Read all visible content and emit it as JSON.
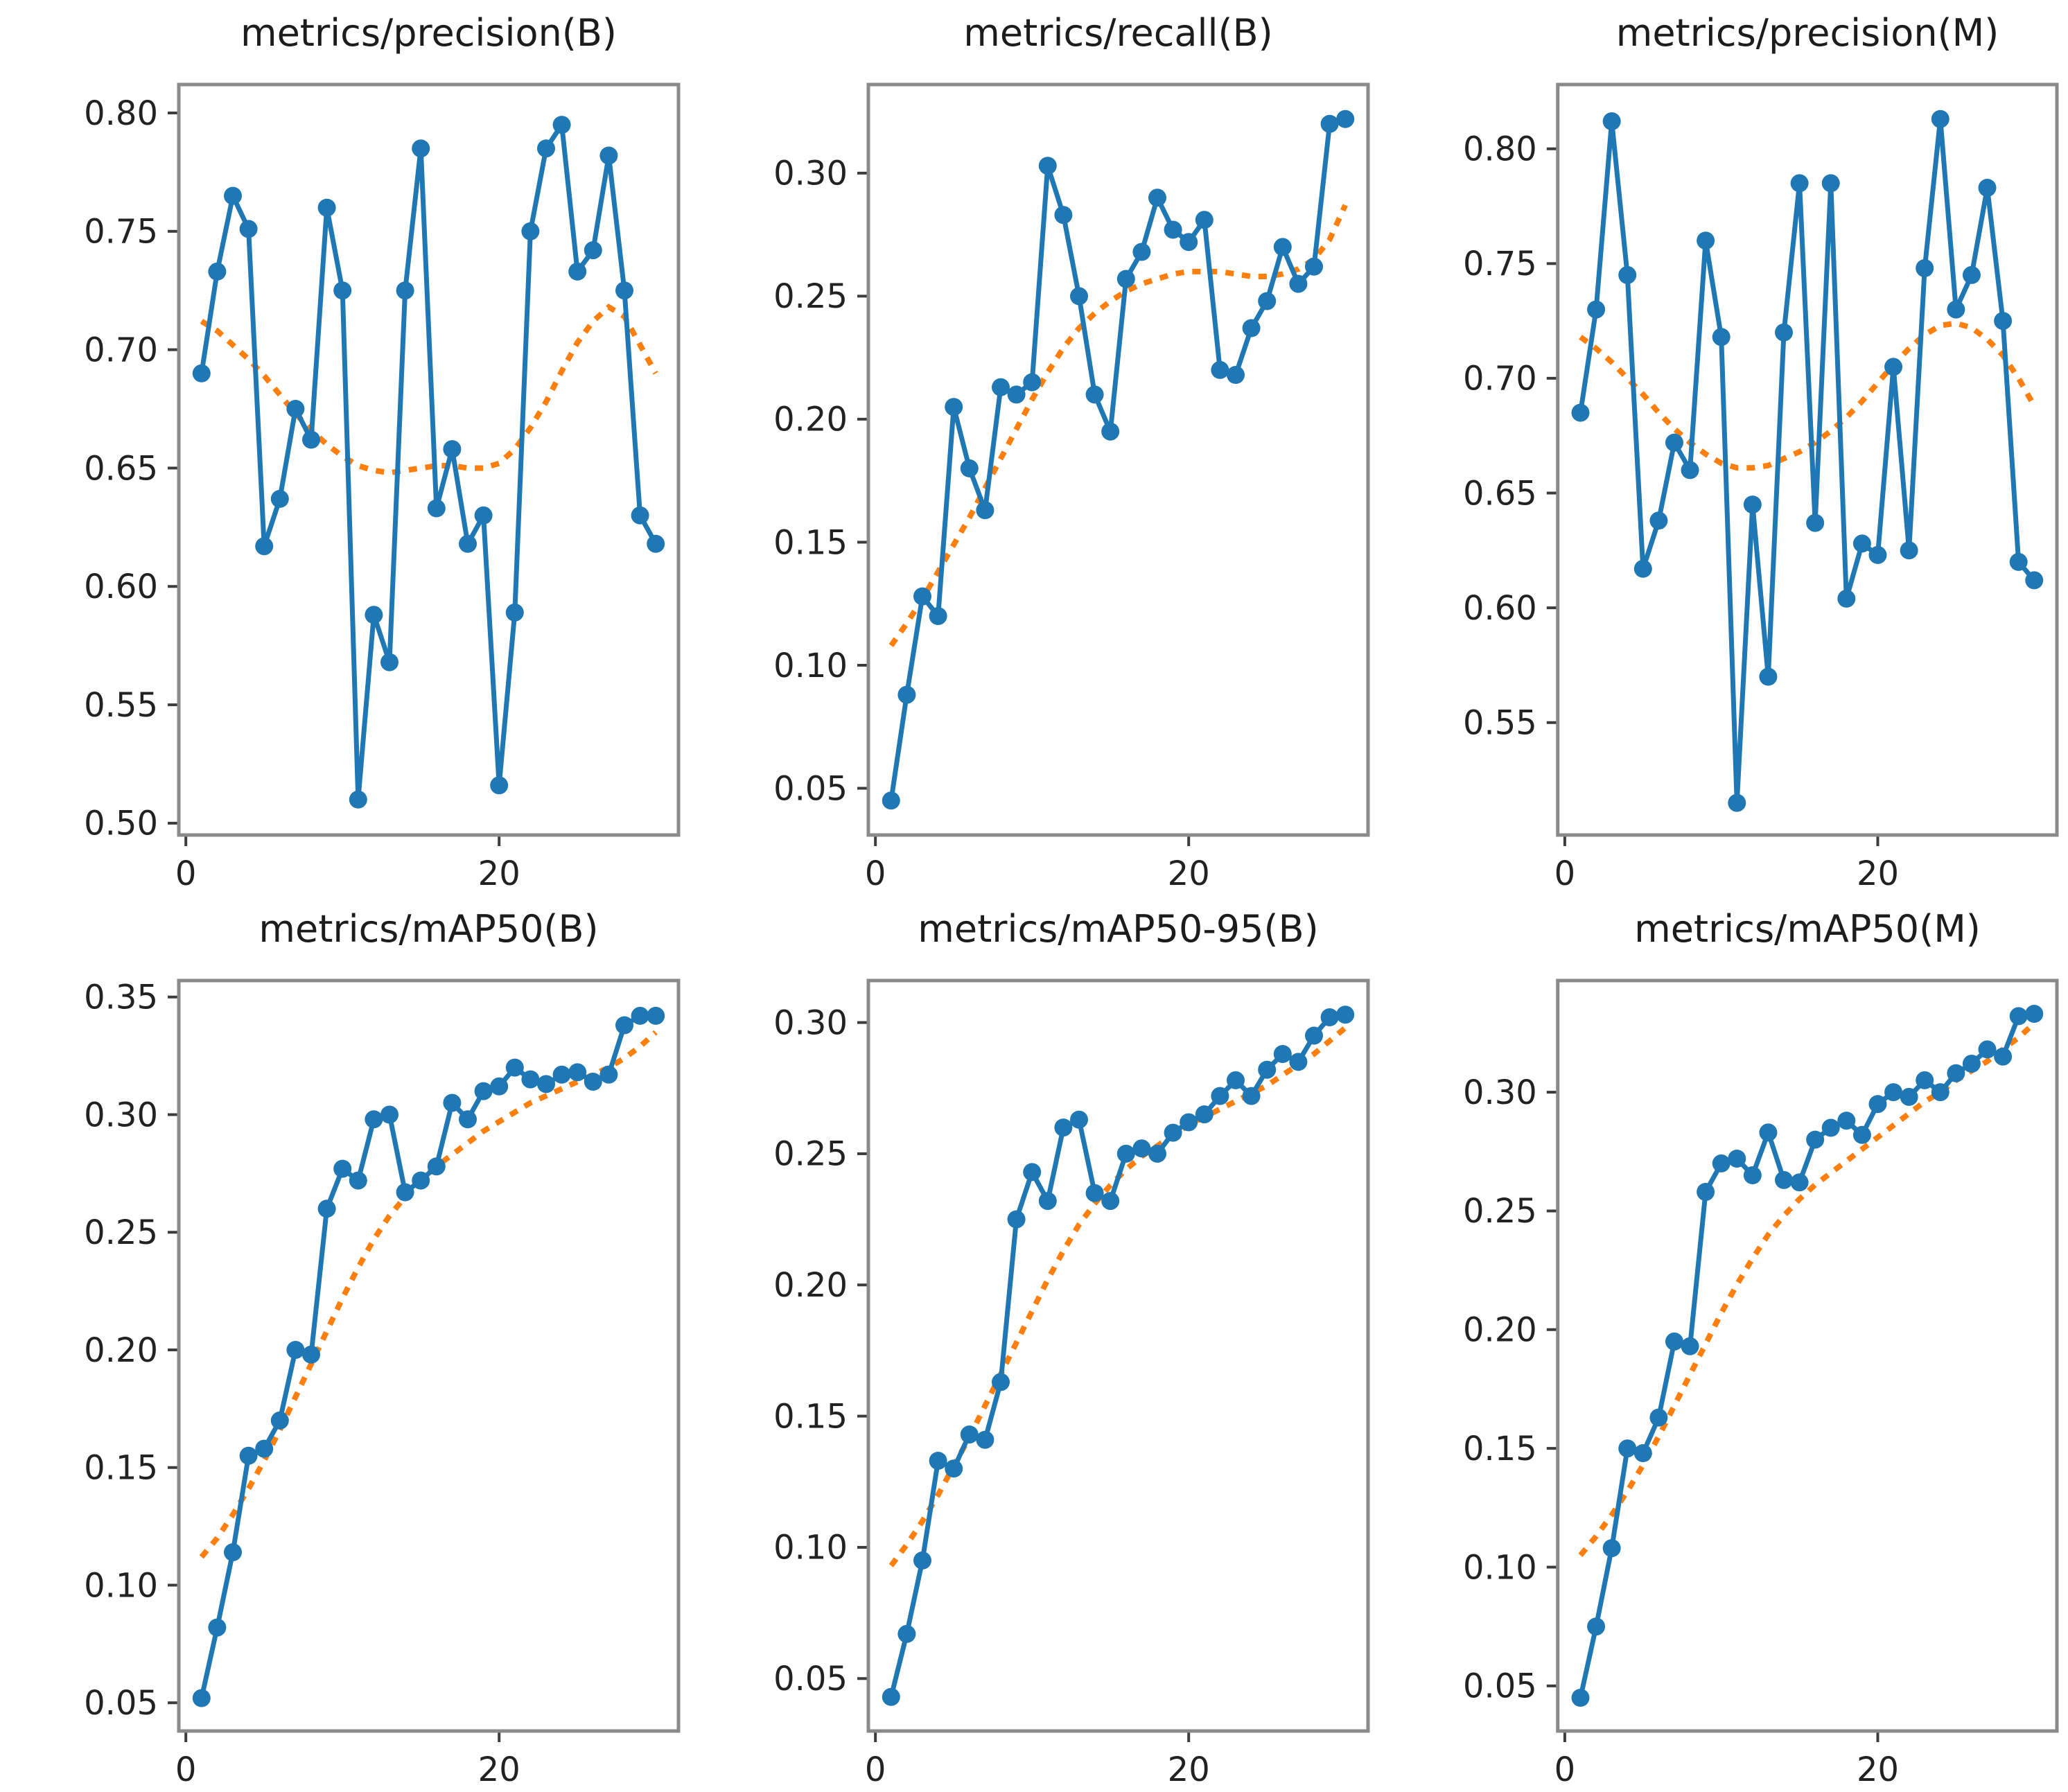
{
  "figure": {
    "kind": "training-metrics-grid",
    "rows": 2,
    "cols": 3,
    "background": "#ffffff",
    "colors": {
      "series": "#1f77b4",
      "trend": "#ff7f0e",
      "spine": "#8a8a8a",
      "tick_mark": "#3c3c3c",
      "tick_label": "#222222",
      "title": "#1c1c1c"
    }
  },
  "chart_data": [
    {
      "type": "line",
      "title": "metrics/precision(B)",
      "xlabel": "",
      "ylabel": "",
      "grid": false,
      "legend_position": "none",
      "xlim": [
        -0.45,
        31.45
      ],
      "ylim": [
        0.495,
        0.812
      ],
      "x_ticks": {
        "values": [
          0,
          20
        ],
        "labels": [
          "0",
          "20"
        ]
      },
      "y_ticks": {
        "values": [
          0.5,
          0.55,
          0.6,
          0.65,
          0.7,
          0.75,
          0.8
        ],
        "labels": [
          "0.50",
          "0.55",
          "0.60",
          "0.65",
          "0.70",
          "0.75",
          "0.80"
        ]
      },
      "x": [
        1,
        2,
        3,
        4,
        5,
        6,
        7,
        8,
        9,
        10,
        11,
        12,
        13,
        14,
        15,
        16,
        17,
        18,
        19,
        20,
        21,
        22,
        23,
        24,
        25,
        26,
        27,
        28,
        29,
        30
      ],
      "series_values": [
        0.69,
        0.733,
        0.765,
        0.751,
        0.617,
        0.637,
        0.675,
        0.662,
        0.76,
        0.725,
        0.51,
        0.588,
        0.568,
        0.725,
        0.785,
        0.633,
        0.658,
        0.618,
        0.63,
        0.516,
        0.589,
        0.75,
        0.785,
        0.795,
        0.733,
        0.742,
        0.782,
        0.725,
        0.63,
        0.618
      ],
      "trend_values": [
        0.712,
        0.708,
        0.702,
        0.696,
        0.689,
        0.681,
        0.673,
        0.666,
        0.66,
        0.655,
        0.651,
        0.649,
        0.648,
        0.649,
        0.65,
        0.651,
        0.651,
        0.65,
        0.65,
        0.652,
        0.658,
        0.667,
        0.678,
        0.691,
        0.703,
        0.712,
        0.718,
        0.714,
        0.702,
        0.69
      ]
    },
    {
      "type": "line",
      "title": "metrics/recall(B)",
      "xlabel": "",
      "ylabel": "",
      "grid": false,
      "legend_position": "none",
      "xlim": [
        -0.45,
        31.45
      ],
      "ylim": [
        0.031,
        0.336
      ],
      "x_ticks": {
        "values": [
          0,
          20
        ],
        "labels": [
          "0",
          "20"
        ]
      },
      "y_ticks": {
        "values": [
          0.05,
          0.1,
          0.15,
          0.2,
          0.25,
          0.3
        ],
        "labels": [
          "0.05",
          "0.10",
          "0.15",
          "0.20",
          "0.25",
          "0.30"
        ]
      },
      "x": [
        1,
        2,
        3,
        4,
        5,
        6,
        7,
        8,
        9,
        10,
        11,
        12,
        13,
        14,
        15,
        16,
        17,
        18,
        19,
        20,
        21,
        22,
        23,
        24,
        25,
        26,
        27,
        28,
        29,
        30
      ],
      "series_values": [
        0.045,
        0.088,
        0.128,
        0.12,
        0.205,
        0.18,
        0.163,
        0.213,
        0.21,
        0.215,
        0.303,
        0.283,
        0.25,
        0.21,
        0.195,
        0.257,
        0.268,
        0.29,
        0.277,
        0.272,
        0.281,
        0.22,
        0.218,
        0.237,
        0.248,
        0.27,
        0.255,
        0.262,
        0.32,
        0.322
      ],
      "trend_values": [
        0.108,
        0.117,
        0.127,
        0.138,
        0.149,
        0.16,
        0.172,
        0.184,
        0.196,
        0.208,
        0.219,
        0.229,
        0.237,
        0.243,
        0.248,
        0.252,
        0.255,
        0.257,
        0.259,
        0.26,
        0.26,
        0.26,
        0.259,
        0.258,
        0.258,
        0.259,
        0.261,
        0.265,
        0.273,
        0.287
      ]
    },
    {
      "type": "line",
      "title": "metrics/precision(M)",
      "xlabel": "",
      "ylabel": "",
      "grid": false,
      "legend_position": "none",
      "xlim": [
        -0.45,
        31.45
      ],
      "ylim": [
        0.501,
        0.828
      ],
      "x_ticks": {
        "values": [
          0,
          20
        ],
        "labels": [
          "0",
          "20"
        ]
      },
      "y_ticks": {
        "values": [
          0.55,
          0.6,
          0.65,
          0.7,
          0.75,
          0.8
        ],
        "labels": [
          "0.55",
          "0.60",
          "0.65",
          "0.70",
          "0.75",
          "0.80"
        ]
      },
      "x": [
        1,
        2,
        3,
        4,
        5,
        6,
        7,
        8,
        9,
        10,
        11,
        12,
        13,
        14,
        15,
        16,
        17,
        18,
        19,
        20,
        21,
        22,
        23,
        24,
        25,
        26,
        27,
        28,
        29,
        30
      ],
      "series_values": [
        0.685,
        0.73,
        0.812,
        0.745,
        0.617,
        0.638,
        0.672,
        0.66,
        0.76,
        0.718,
        0.515,
        0.645,
        0.57,
        0.72,
        0.785,
        0.637,
        0.785,
        0.604,
        0.628,
        0.623,
        0.705,
        0.625,
        0.748,
        0.813,
        0.73,
        0.745,
        0.783,
        0.725,
        0.62,
        0.612
      ],
      "trend_values": [
        0.718,
        0.713,
        0.707,
        0.7,
        0.693,
        0.685,
        0.678,
        0.672,
        0.667,
        0.663,
        0.661,
        0.661,
        0.662,
        0.665,
        0.668,
        0.672,
        0.677,
        0.683,
        0.69,
        0.698,
        0.706,
        0.713,
        0.719,
        0.723,
        0.724,
        0.722,
        0.717,
        0.71,
        0.7,
        0.688
      ]
    },
    {
      "type": "line",
      "title": "metrics/mAP50(B)",
      "xlabel": "",
      "ylabel": "",
      "grid": false,
      "legend_position": "none",
      "xlim": [
        -0.45,
        31.45
      ],
      "ylim": [
        0.038,
        0.357
      ],
      "x_ticks": {
        "values": [
          0,
          20
        ],
        "labels": [
          "0",
          "20"
        ]
      },
      "y_ticks": {
        "values": [
          0.05,
          0.1,
          0.15,
          0.2,
          0.25,
          0.3,
          0.35
        ],
        "labels": [
          "0.05",
          "0.10",
          "0.15",
          "0.20",
          "0.25",
          "0.30",
          "0.35"
        ]
      },
      "x": [
        1,
        2,
        3,
        4,
        5,
        6,
        7,
        8,
        9,
        10,
        11,
        12,
        13,
        14,
        15,
        16,
        17,
        18,
        19,
        20,
        21,
        22,
        23,
        24,
        25,
        26,
        27,
        28,
        29,
        30
      ],
      "series_values": [
        0.052,
        0.082,
        0.114,
        0.155,
        0.158,
        0.17,
        0.2,
        0.198,
        0.26,
        0.277,
        0.272,
        0.298,
        0.3,
        0.267,
        0.272,
        0.278,
        0.305,
        0.298,
        0.31,
        0.312,
        0.32,
        0.315,
        0.313,
        0.317,
        0.318,
        0.314,
        0.317,
        0.338,
        0.342,
        0.342
      ],
      "trend_values": [
        0.112,
        0.12,
        0.13,
        0.141,
        0.153,
        0.166,
        0.18,
        0.194,
        0.208,
        0.222,
        0.235,
        0.247,
        0.257,
        0.265,
        0.272,
        0.278,
        0.283,
        0.288,
        0.293,
        0.297,
        0.301,
        0.305,
        0.308,
        0.311,
        0.314,
        0.317,
        0.32,
        0.324,
        0.329,
        0.335
      ]
    },
    {
      "type": "line",
      "title": "metrics/mAP50-95(B)",
      "xlabel": "",
      "ylabel": "",
      "grid": false,
      "legend_position": "none",
      "xlim": [
        -0.45,
        31.45
      ],
      "ylim": [
        0.03,
        0.316
      ],
      "x_ticks": {
        "values": [
          0,
          20
        ],
        "labels": [
          "0",
          "20"
        ]
      },
      "y_ticks": {
        "values": [
          0.05,
          0.1,
          0.15,
          0.2,
          0.25,
          0.3
        ],
        "labels": [
          "0.05",
          "0.10",
          "0.15",
          "0.20",
          "0.25",
          "0.30"
        ]
      },
      "x": [
        1,
        2,
        3,
        4,
        5,
        6,
        7,
        8,
        9,
        10,
        11,
        12,
        13,
        14,
        15,
        16,
        17,
        18,
        19,
        20,
        21,
        22,
        23,
        24,
        25,
        26,
        27,
        28,
        29,
        30
      ],
      "series_values": [
        0.043,
        0.067,
        0.095,
        0.133,
        0.13,
        0.143,
        0.141,
        0.163,
        0.225,
        0.243,
        0.232,
        0.26,
        0.263,
        0.235,
        0.232,
        0.25,
        0.252,
        0.25,
        0.258,
        0.262,
        0.265,
        0.272,
        0.278,
        0.272,
        0.282,
        0.288,
        0.285,
        0.295,
        0.302,
        0.303
      ],
      "trend_values": [
        0.093,
        0.101,
        0.11,
        0.12,
        0.131,
        0.142,
        0.154,
        0.166,
        0.178,
        0.19,
        0.202,
        0.213,
        0.223,
        0.231,
        0.238,
        0.244,
        0.249,
        0.253,
        0.257,
        0.261,
        0.264,
        0.267,
        0.27,
        0.273,
        0.276,
        0.28,
        0.284,
        0.288,
        0.293,
        0.298
      ]
    },
    {
      "type": "line",
      "title": "metrics/mAP50(M)",
      "xlabel": "",
      "ylabel": "",
      "grid": false,
      "legend_position": "none",
      "xlim": [
        -0.45,
        31.45
      ],
      "ylim": [
        0.031,
        0.347
      ],
      "x_ticks": {
        "values": [
          0,
          20
        ],
        "labels": [
          "0",
          "20"
        ]
      },
      "y_ticks": {
        "values": [
          0.05,
          0.1,
          0.15,
          0.2,
          0.25,
          0.3
        ],
        "labels": [
          "0.05",
          "0.10",
          "0.15",
          "0.20",
          "0.25",
          "0.30"
        ]
      },
      "x": [
        1,
        2,
        3,
        4,
        5,
        6,
        7,
        8,
        9,
        10,
        11,
        12,
        13,
        14,
        15,
        16,
        17,
        18,
        19,
        20,
        21,
        22,
        23,
        24,
        25,
        26,
        27,
        28,
        29,
        30
      ],
      "series_values": [
        0.045,
        0.075,
        0.108,
        0.15,
        0.148,
        0.163,
        0.195,
        0.193,
        0.258,
        0.27,
        0.272,
        0.265,
        0.283,
        0.263,
        0.262,
        0.28,
        0.285,
        0.288,
        0.282,
        0.295,
        0.3,
        0.298,
        0.305,
        0.3,
        0.308,
        0.312,
        0.318,
        0.315,
        0.332,
        0.333
      ],
      "trend_values": [
        0.105,
        0.113,
        0.122,
        0.132,
        0.143,
        0.155,
        0.168,
        0.181,
        0.194,
        0.207,
        0.219,
        0.23,
        0.24,
        0.248,
        0.255,
        0.261,
        0.266,
        0.271,
        0.276,
        0.281,
        0.286,
        0.291,
        0.296,
        0.3,
        0.305,
        0.309,
        0.313,
        0.318,
        0.323,
        0.329
      ]
    }
  ]
}
